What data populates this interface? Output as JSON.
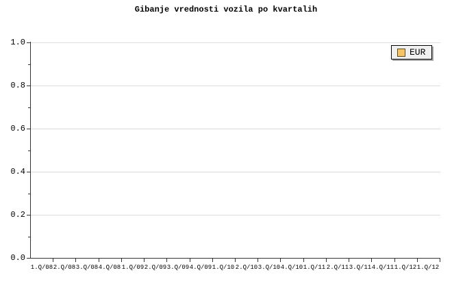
{
  "chart_data": {
    "type": "line",
    "title": "Gibanje vrednosti vozila po kvartalih",
    "xlabel": "",
    "ylabel": "",
    "ylim": [
      0,
      1.0
    ],
    "grid": "horizontal-only",
    "plot_background": "#ffffff",
    "gridline_color": "#dcdcdc",
    "axis_color": "#333333",
    "y_axis": {
      "ticks": [
        {
          "value": 1.0,
          "label": "1.0"
        },
        {
          "value": 0.8,
          "label": "0.8"
        },
        {
          "value": 0.6,
          "label": "0.6"
        },
        {
          "value": 0.4,
          "label": "0.4"
        },
        {
          "value": 0.2,
          "label": "0.2"
        },
        {
          "value": 0.0,
          "label": "0.0"
        }
      ],
      "minor_tick_interval": 0.1
    },
    "x_axis": {
      "categories": [
        "1.Q/08",
        "2.Q/08",
        "3.Q/08",
        "4.Q/08",
        "1.Q/09",
        "2.Q/09",
        "3.Q/09",
        "4.Q/09",
        "1.Q/10",
        "2.Q/10",
        "3.Q/10",
        "4.Q/10",
        "1.Q/11",
        "2.Q/11",
        "3.Q/11",
        "4.Q/11",
        "1.Q/12",
        "1.Q/12"
      ]
    },
    "series": [
      {
        "name": "EUR",
        "color": "#f7c568",
        "values": []
      }
    ],
    "legend": {
      "position": "top-right",
      "background": "#f0f0f0",
      "border_color": "#000000",
      "shadow_color": "#a9a9a9"
    }
  }
}
